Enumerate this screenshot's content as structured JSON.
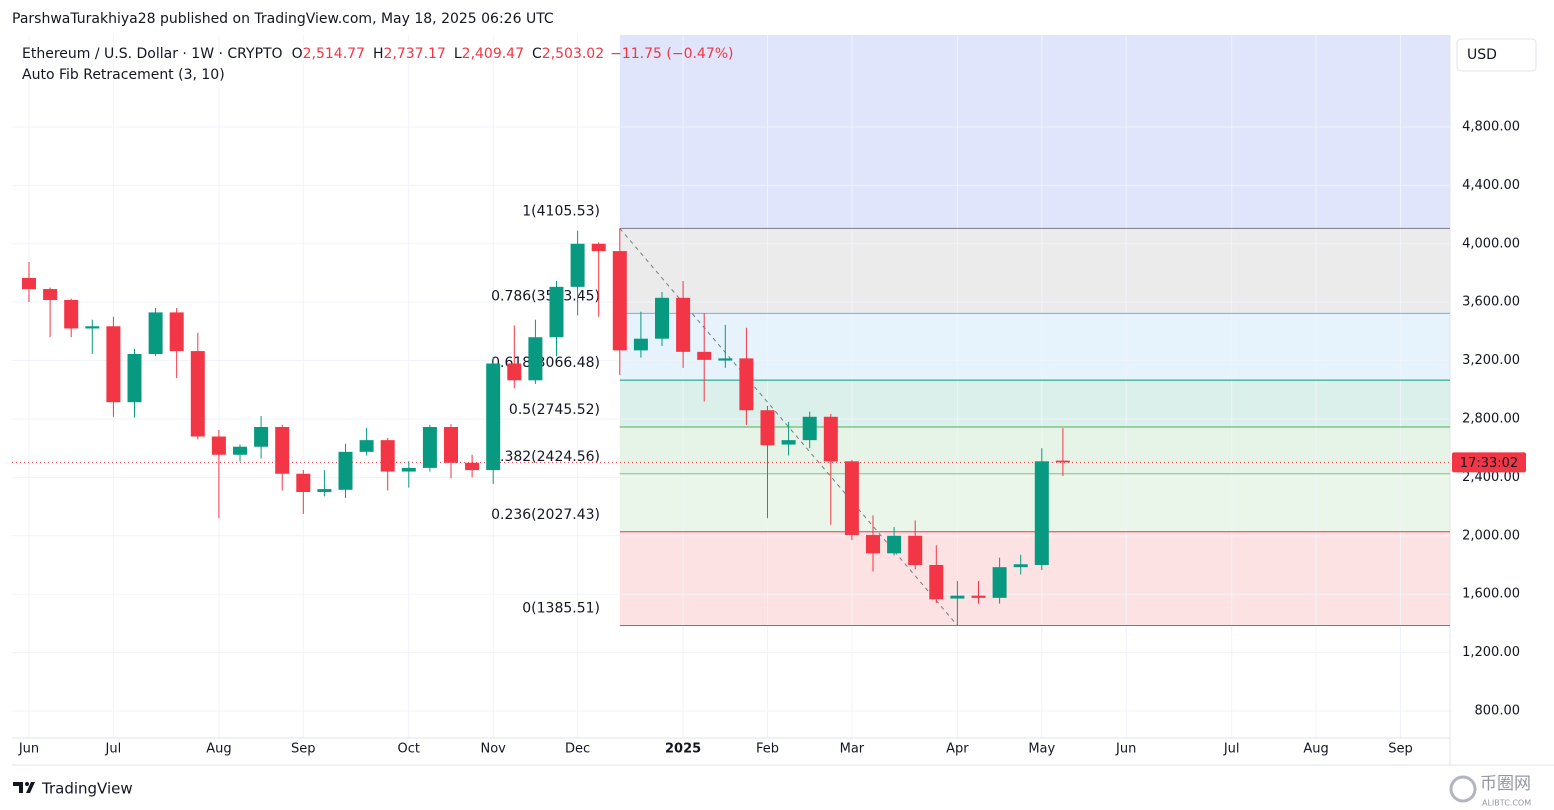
{
  "header": {
    "byline": "ParshwaTurakhiya28 published on TradingView.com, May 18, 2025 06:26 UTC",
    "symbol": "Ethereum / U.S. Dollar · 1W · CRYPTO",
    "ohlc": {
      "labels": [
        "O",
        "H",
        "L",
        "C"
      ],
      "values": [
        2514.77,
        2737.17,
        2409.47,
        2503.02
      ],
      "value_labels": [
        "2,514.77",
        "2,737.17",
        "2,409.47",
        "2,503.02"
      ]
    },
    "change": "−11.75 (−0.47%)",
    "indicator": "Auto Fib Retracement (3, 10)",
    "currency": "USD",
    "countdown": "17:33:02"
  },
  "footer": {
    "brand": "TradingView",
    "watermark": "币圈网",
    "watermark_url": "ALIBTC.COM"
  },
  "chart_data": {
    "type": "candlestick",
    "up_color": "#089981",
    "down_color": "#f23645",
    "categories": [
      "Jun",
      null,
      null,
      null,
      "Jul",
      null,
      null,
      null,
      null,
      "Aug",
      null,
      null,
      null,
      "Sep",
      null,
      null,
      null,
      null,
      "Oct",
      null,
      null,
      null,
      "Nov",
      null,
      null,
      null,
      "Dec",
      null,
      null,
      null,
      null,
      "2025",
      null,
      null,
      null,
      "Feb",
      null,
      null,
      null,
      "Mar",
      null,
      null,
      null,
      null,
      "Apr",
      null,
      null,
      null,
      "May",
      null,
      null,
      null,
      "Jun",
      null,
      null,
      null,
      null,
      "Jul",
      null,
      null,
      null,
      "Aug",
      null,
      null,
      null,
      "Sep",
      null,
      null
    ],
    "open": [
      3766,
      3690,
      3615,
      3420,
      3435,
      2915,
      3245,
      3530,
      3265,
      2680,
      2555,
      2610,
      2745,
      2425,
      2300,
      2315,
      2575,
      2655,
      2440,
      2465,
      2745,
      2500,
      2450,
      3180,
      3065,
      3360,
      3705,
      4000,
      3950,
      3270,
      3350,
      3630,
      3260,
      3200,
      3215,
      2860,
      2625,
      2655,
      2815,
      2510,
      2005,
      1880,
      2000,
      1800,
      1570,
      1590,
      1575,
      1785,
      1800,
      2514.77,
      null,
      null,
      null,
      null,
      null,
      null,
      null,
      null,
      null,
      null,
      null,
      null,
      null,
      null,
      null,
      null,
      null,
      null
    ],
    "high": [
      3875,
      3700,
      3625,
      3480,
      3500,
      3280,
      3560,
      3560,
      3390,
      2725,
      2625,
      2820,
      2760,
      2450,
      2450,
      2630,
      2740,
      2670,
      2510,
      2760,
      2765,
      2555,
      3225,
      3440,
      3480,
      3745,
      4090,
      4010,
      4105.53,
      3535,
      3670,
      3745,
      3525,
      3445,
      3425,
      2890,
      2780,
      2850,
      2835,
      2520,
      2140,
      2060,
      2105,
      1935,
      1690,
      1690,
      1850,
      1870,
      2600,
      2737.17,
      null,
      null,
      null,
      null,
      null,
      null,
      null,
      null,
      null,
      null,
      null,
      null,
      null,
      null,
      null,
      null,
      null,
      null
    ],
    "low": [
      3601,
      3360,
      3360,
      3245,
      2815,
      2810,
      3230,
      3080,
      2660,
      2120,
      2510,
      2530,
      2310,
      2150,
      2270,
      2260,
      2550,
      2310,
      2330,
      2440,
      2395,
      2400,
      2355,
      3010,
      3040,
      3230,
      3510,
      3500,
      3100,
      3220,
      3300,
      3150,
      2920,
      3150,
      2760,
      2120,
      2550,
      2600,
      2075,
      1970,
      1755,
      1865,
      1770,
      1540,
      1385.51,
      1535,
      1535,
      1735,
      1765,
      2409.47,
      null,
      null,
      null,
      null,
      null,
      null,
      null,
      null,
      null,
      null,
      null,
      null,
      null,
      null,
      null,
      null,
      null,
      null
    ],
    "close": [
      3690,
      3615,
      3420,
      3435,
      2915,
      3245,
      3530,
      3265,
      2680,
      2555,
      2610,
      2745,
      2425,
      2300,
      2320,
      2575,
      2655,
      2440,
      2465,
      2745,
      2500,
      2450,
      3180,
      3065,
      3360,
      3705,
      4000,
      3950,
      3270,
      3350,
      3630,
      3260,
      3205,
      3215,
      2860,
      2620,
      2655,
      2815,
      2510,
      2005,
      1880,
      2000,
      1800,
      1565,
      1590,
      1575,
      1785,
      1805,
      2510,
      2503.02,
      null,
      null,
      null,
      null,
      null,
      null,
      null,
      null,
      null,
      null,
      null,
      null,
      null,
      null,
      null,
      null,
      null,
      null
    ],
    "ylim": [
      615,
      5430
    ],
    "yticks": [
      {
        "value": 800,
        "label": "800.00"
      },
      {
        "value": 1200,
        "label": "1,200.00"
      },
      {
        "value": 1600,
        "label": "1,600.00"
      },
      {
        "value": 2000,
        "label": "2,000.00"
      },
      {
        "value": 2400,
        "label": "2,400.00"
      },
      {
        "value": 2800,
        "label": "2,800.00"
      },
      {
        "value": 3200,
        "label": "3,200.00"
      },
      {
        "value": 3600,
        "label": "3,600.00"
      },
      {
        "value": 4000,
        "label": "4,000.00"
      },
      {
        "value": 4400,
        "label": "4,400.00"
      },
      {
        "value": 4800,
        "label": "4,800.00"
      }
    ],
    "grid": true,
    "fib": {
      "values": [
        1385.51,
        2027.43,
        2424.56,
        2745.52,
        3066.48,
        3523.45,
        4105.53
      ],
      "value_labels": [
        "0(1385.51)",
        "0.236(2027.43)",
        "0.382(2424.56)",
        "0.5(2745.52)",
        "0.618(3066.48)",
        "0.786(3523.45)",
        "1(4105.53)"
      ],
      "colors": [
        "#787b86",
        "#f23645",
        "#81c784",
        "#4caf50",
        "#089981",
        "#64b5f6",
        "#787b86"
      ],
      "fill_colors": [
        "#fde2e3",
        "#ebf6eb",
        "#e6f4e7",
        "#dbefeb",
        "#e6f3fd",
        "#ebebeb",
        "#e0e5fb"
      ]
    }
  }
}
